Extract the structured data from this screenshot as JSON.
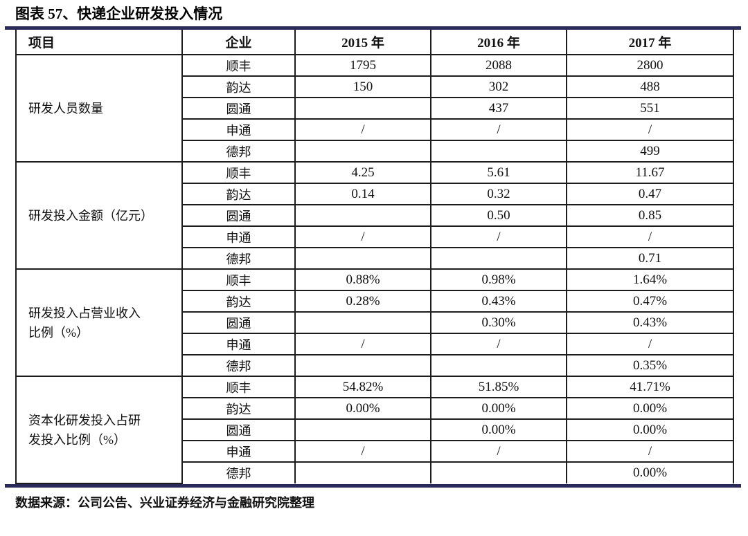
{
  "title": "图表 57、快递企业研发投入情况",
  "source_note": "数据来源：公司公告、兴业证券经济与金融研究院整理",
  "colors": {
    "accent_rule": "#2b2b5a",
    "table_border": "#1c1c1c",
    "text": "#111111",
    "background": "#ffffff"
  },
  "table": {
    "headers": [
      "项目",
      "企业",
      "2015 年",
      "2016 年",
      "2017 年"
    ],
    "groups": [
      {
        "label": "研发人员数量",
        "rows": [
          {
            "company": "顺丰",
            "values": [
              "1795",
              "2088",
              "2800"
            ]
          },
          {
            "company": "韵达",
            "values": [
              "150",
              "302",
              "488"
            ]
          },
          {
            "company": "圆通",
            "values": [
              "",
              "437",
              "551"
            ]
          },
          {
            "company": "申通",
            "values": [
              "/",
              "/",
              "/"
            ]
          },
          {
            "company": "德邦",
            "values": [
              "",
              "",
              "499"
            ]
          }
        ]
      },
      {
        "label": "研发投入金额（亿元）",
        "rows": [
          {
            "company": "顺丰",
            "values": [
              "4.25",
              "5.61",
              "11.67"
            ]
          },
          {
            "company": "韵达",
            "values": [
              "0.14",
              "0.32",
              "0.47"
            ]
          },
          {
            "company": "圆通",
            "values": [
              "",
              "0.50",
              "0.85"
            ]
          },
          {
            "company": "申通",
            "values": [
              "/",
              "/",
              "/"
            ]
          },
          {
            "company": "德邦",
            "values": [
              "",
              "",
              "0.71"
            ]
          }
        ]
      },
      {
        "label": "研发投入占营业收入\n比例（%）",
        "rows": [
          {
            "company": "顺丰",
            "values": [
              "0.88%",
              "0.98%",
              "1.64%"
            ]
          },
          {
            "company": "韵达",
            "values": [
              "0.28%",
              "0.43%",
              "0.47%"
            ]
          },
          {
            "company": "圆通",
            "values": [
              "",
              "0.30%",
              "0.43%"
            ]
          },
          {
            "company": "申通",
            "values": [
              "/",
              "/",
              "/"
            ]
          },
          {
            "company": "德邦",
            "values": [
              "",
              "",
              "0.35%"
            ]
          }
        ]
      },
      {
        "label": "资本化研发投入占研\n发投入比例（%）",
        "rows": [
          {
            "company": "顺丰",
            "values": [
              "54.82%",
              "51.85%",
              "41.71%"
            ]
          },
          {
            "company": "韵达",
            "values": [
              "0.00%",
              "0.00%",
              "0.00%"
            ]
          },
          {
            "company": "圆通",
            "values": [
              "",
              "0.00%",
              "0.00%"
            ]
          },
          {
            "company": "申通",
            "values": [
              "/",
              "/",
              "/"
            ]
          },
          {
            "company": "德邦",
            "values": [
              "",
              "",
              "0.00%"
            ]
          }
        ]
      }
    ]
  }
}
